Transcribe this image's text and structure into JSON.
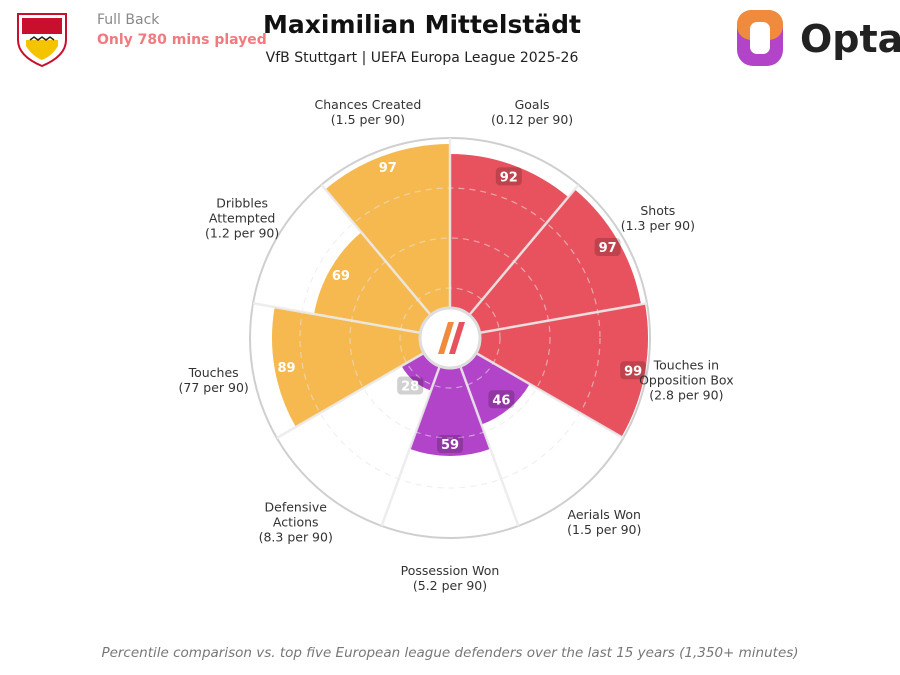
{
  "header": {
    "position": "Full Back",
    "minutes_note": "Only 780 mins played",
    "brand": "Opta"
  },
  "chart_data": {
    "type": "polar_bar",
    "title": "Maximilian Mittelstädt",
    "subtitle": "VfB Stuttgart | UEFA Europa League 2025-26",
    "categories": [
      "Goals",
      "Shots",
      "Touches in Opposition Box",
      "Aerials Won",
      "Possession Won",
      "Defensive Actions",
      "Touches",
      "Dribbles Attempted",
      "Chances Created"
    ],
    "per90": [
      "(0.12 per 90)",
      "(1.3 per 90)",
      "(2.8 per 90)",
      "(1.5 per 90)",
      "(5.2 per 90)",
      "(8.3 per 90)",
      "(77 per 90)",
      "(1.2 per 90)",
      "(1.5 per 90)"
    ],
    "values": [
      92,
      97,
      99,
      46,
      59,
      28,
      89,
      69,
      97
    ],
    "colors": [
      "#e8525e",
      "#e8525e",
      "#e8525e",
      "#b144c8",
      "#b144c8",
      "#b144c8",
      "#f6b94f",
      "#f6b94f",
      "#f6b94f"
    ],
    "rlim": [
      0,
      100
    ],
    "rticks": [
      25,
      50,
      75
    ],
    "grid": true,
    "note": "Percentile comparison vs. top five European league defenders over the last 15 years (1,350+ minutes)"
  }
}
